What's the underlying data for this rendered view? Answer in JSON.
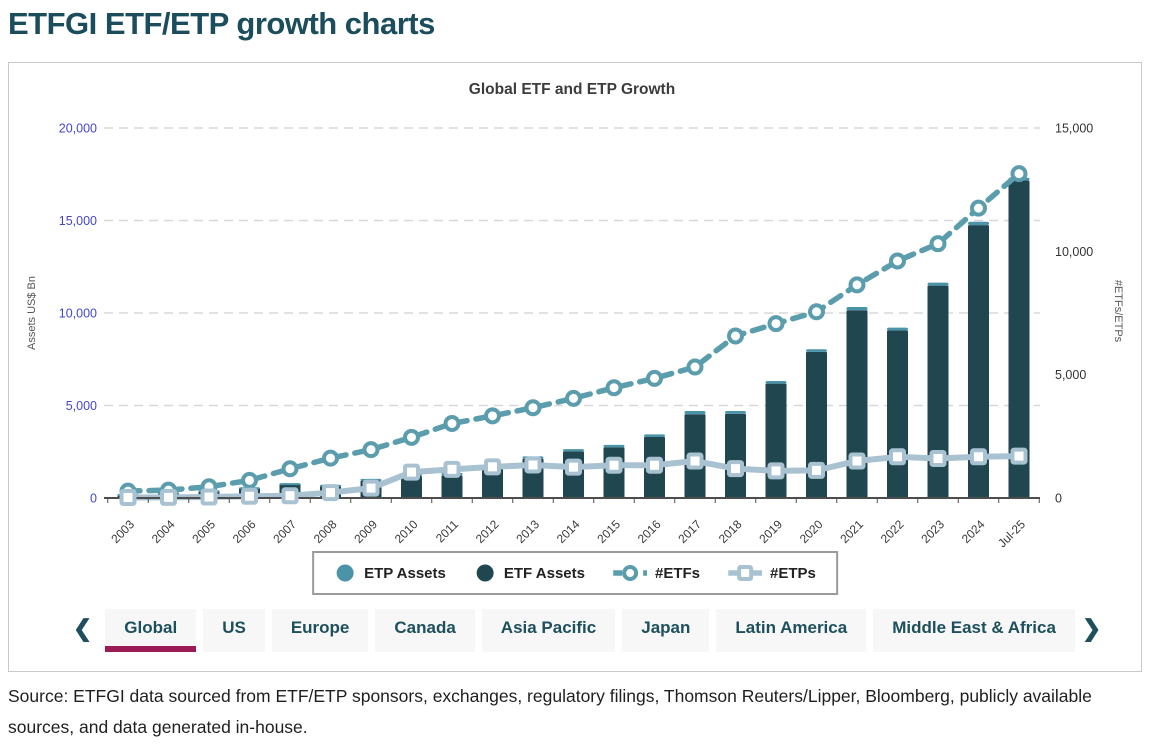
{
  "page": {
    "title": "ETFGI ETF/ETP growth charts",
    "source_note": "Source: ETFGI data sourced from ETF/ETP sponsors, exchanges, regulatory filings, Thomson Reuters/Lipper, Bloomberg, publicly available sources, and data generated in-house."
  },
  "chart_data": {
    "type": "bar",
    "subtype": "stacked-bars-with-dual-axis-lines",
    "title": "Global ETF and ETP Growth",
    "categories": [
      "2003",
      "2004",
      "2005",
      "2006",
      "2007",
      "2008",
      "2009",
      "2010",
      "2011",
      "2012",
      "2013",
      "2014",
      "2015",
      "2016",
      "2017",
      "2018",
      "2019",
      "2020",
      "2021",
      "2022",
      "2023",
      "2024",
      "Jul-25"
    ],
    "series": [
      {
        "name": "ETP Assets",
        "type": "bar",
        "stack": "assets",
        "axis": "left",
        "color": "#4a93a8",
        "values": [
          7,
          10,
          12,
          15,
          32,
          61,
          96,
          123,
          135,
          154,
          120,
          125,
          130,
          140,
          170,
          155,
          145,
          140,
          175,
          150,
          160,
          185,
          145
        ]
      },
      {
        "name": "ETF Assets",
        "type": "bar",
        "stack": "assets",
        "axis": "left",
        "color": "#20464f",
        "values": [
          205,
          300,
          405,
          565,
          775,
          655,
          940,
          1190,
          1220,
          1600,
          2130,
          2520,
          2740,
          3300,
          4530,
          4550,
          6180,
          7900,
          10150,
          9060,
          11480,
          14750,
          17170
        ]
      },
      {
        "name": "#ETFs",
        "type": "line",
        "style": "dashed",
        "marker": "circle",
        "axis": "right",
        "color": "#5b9dad",
        "values": [
          280,
          320,
          455,
          715,
          1185,
          1615,
          1960,
          2460,
          3020,
          3330,
          3660,
          4040,
          4470,
          4850,
          5310,
          6570,
          7070,
          7550,
          8640,
          9610,
          10310,
          11750,
          13150
        ]
      },
      {
        "name": "#ETPs",
        "type": "line",
        "style": "solid",
        "marker": "square",
        "axis": "right",
        "color": "#a9c2d1",
        "values": [
          20,
          25,
          40,
          70,
          90,
          220,
          400,
          1050,
          1160,
          1260,
          1340,
          1250,
          1330,
          1330,
          1500,
          1190,
          1100,
          1120,
          1500,
          1670,
          1600,
          1670,
          1700
        ]
      }
    ],
    "axes": {
      "left": {
        "label": "Assets US$ Bn",
        "min": 0,
        "max": 20000,
        "ticks": [
          0,
          5000,
          10000,
          15000,
          20000
        ],
        "tick_color": "#4545cc"
      },
      "right": {
        "label": "#ETFs/ETPs",
        "min": 0,
        "max": 15000,
        "ticks": [
          0,
          5000,
          10000,
          15000
        ],
        "tick_color": "#333333"
      }
    },
    "grid": "horizontal-dashed",
    "legend_position": "bottom",
    "title_color": "#3c3c3c"
  },
  "tabs": {
    "prev_icon": "❮",
    "next_icon": "❯",
    "active": "Global",
    "items": [
      "Global",
      "US",
      "Europe",
      "Canada",
      "Asia Pacific",
      "Japan",
      "Latin America",
      "Middle East & Africa"
    ]
  }
}
